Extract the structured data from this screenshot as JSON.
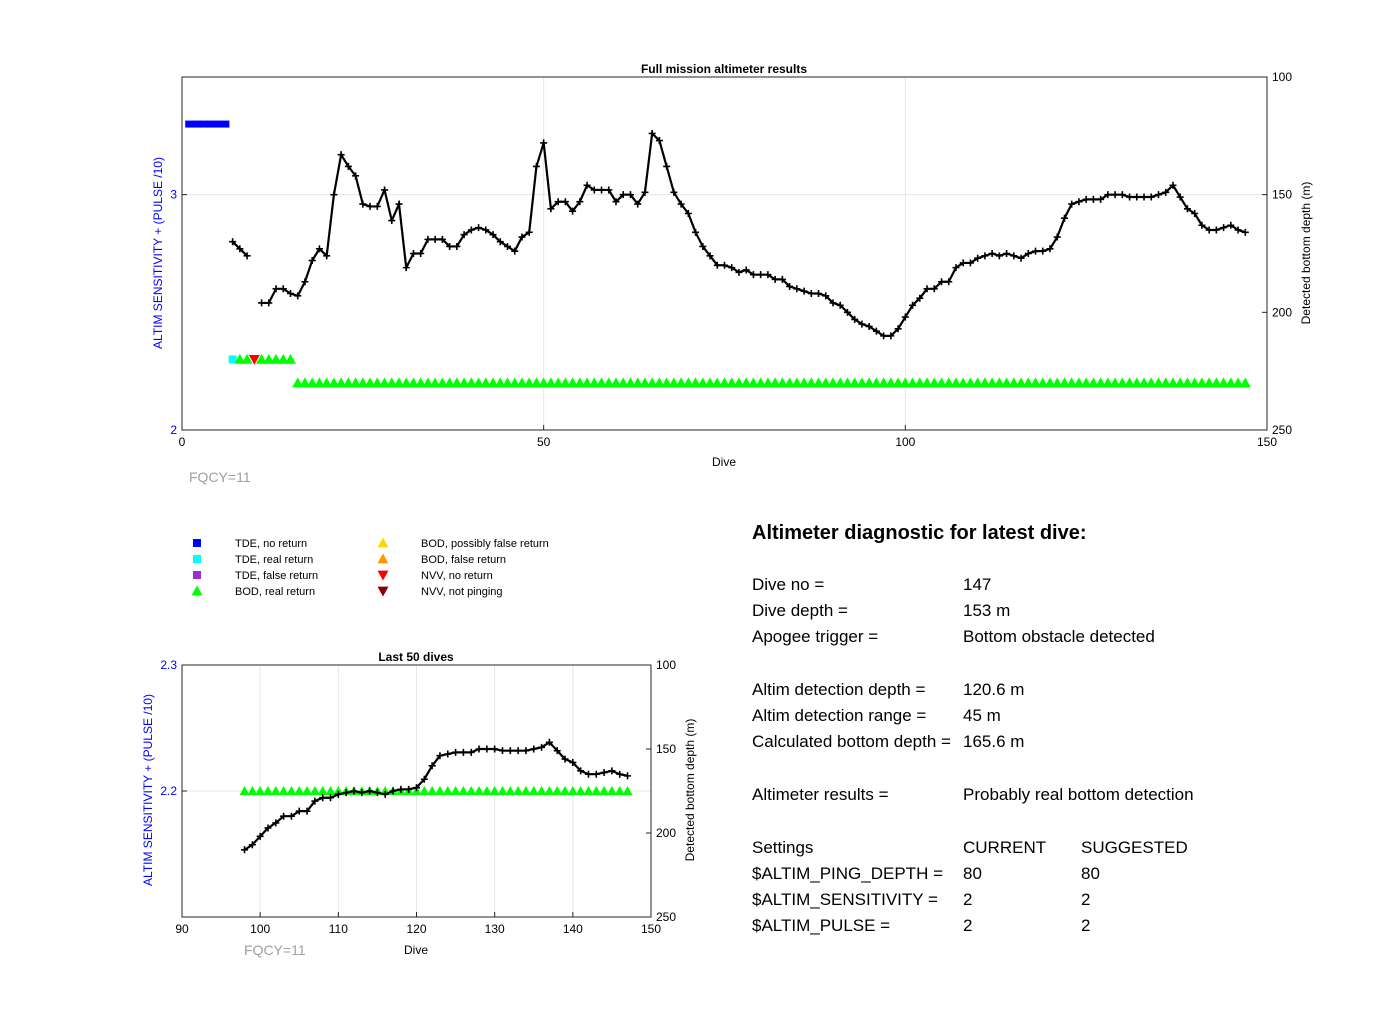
{
  "chart_data": [
    {
      "type": "line",
      "title": "Full mission altimeter results",
      "xlabel": "Dive",
      "ylabel": "ALTIM SENSITIVITY + (PULSE /10)",
      "y2label": "Detected bottom depth (m)",
      "xlim": [
        0,
        150
      ],
      "ylim": [
        2,
        3.5
      ],
      "y2lim": [
        100,
        250
      ],
      "y2_reversed": true,
      "xticks": [
        "0",
        "50",
        "100",
        "150"
      ],
      "yticks": [
        "2",
        "3"
      ],
      "y2ticks": [
        "100",
        "150",
        "200",
        "250"
      ],
      "grid": true,
      "annotation": "FQCY=11",
      "series": [
        {
          "name": "Detected bottom depth",
          "axis": "right",
          "color": "#000000",
          "points": [
            [
              7,
              170
            ],
            [
              8,
              173
            ],
            [
              9,
              176
            ],
            [
              11,
              196
            ],
            [
              12,
              196
            ],
            [
              13,
              190
            ],
            [
              14,
              190
            ],
            [
              15,
              192
            ],
            [
              16,
              193
            ],
            [
              17,
              187
            ],
            [
              18,
              178
            ],
            [
              19,
              173
            ],
            [
              20,
              176
            ],
            [
              21,
              150
            ],
            [
              22,
              133
            ],
            [
              23,
              138
            ],
            [
              24,
              142
            ],
            [
              25,
              154
            ],
            [
              26,
              155
            ],
            [
              27,
              155
            ],
            [
              28,
              148
            ],
            [
              29,
              161
            ],
            [
              30,
              154
            ],
            [
              31,
              181
            ],
            [
              32,
              175
            ],
            [
              33,
              175
            ],
            [
              34,
              169
            ],
            [
              35,
              169
            ],
            [
              36,
              169
            ],
            [
              37,
              172
            ],
            [
              38,
              172
            ],
            [
              39,
              167
            ],
            [
              40,
              165
            ],
            [
              41,
              164
            ],
            [
              42,
              165
            ],
            [
              43,
              167
            ],
            [
              44,
              170
            ],
            [
              45,
              172
            ],
            [
              46,
              174
            ],
            [
              47,
              168
            ],
            [
              48,
              166
            ],
            [
              49,
              138
            ],
            [
              50,
              128
            ],
            [
              51,
              156
            ],
            [
              52,
              153
            ],
            [
              53,
              153
            ],
            [
              54,
              157
            ],
            [
              55,
              153
            ],
            [
              56,
              146
            ],
            [
              57,
              148
            ],
            [
              58,
              148
            ],
            [
              59,
              148
            ],
            [
              60,
              153
            ],
            [
              61,
              150
            ],
            [
              62,
              150
            ],
            [
              63,
              154
            ],
            [
              64,
              149
            ],
            [
              65,
              124
            ],
            [
              66,
              127
            ],
            [
              67,
              138
            ],
            [
              68,
              149
            ],
            [
              69,
              154
            ],
            [
              70,
              158
            ],
            [
              71,
              166
            ],
            [
              72,
              172
            ],
            [
              73,
              176
            ],
            [
              74,
              180
            ],
            [
              75,
              180
            ],
            [
              76,
              181
            ],
            [
              77,
              183
            ],
            [
              78,
              182
            ],
            [
              79,
              184
            ],
            [
              80,
              184
            ],
            [
              81,
              184
            ],
            [
              82,
              186
            ],
            [
              83,
              186
            ],
            [
              84,
              189
            ],
            [
              85,
              190
            ],
            [
              86,
              191
            ],
            [
              87,
              192
            ],
            [
              88,
              192
            ],
            [
              89,
              193
            ],
            [
              90,
              196
            ],
            [
              91,
              197
            ],
            [
              92,
              200
            ],
            [
              93,
              203
            ],
            [
              94,
              205
            ],
            [
              95,
              206
            ],
            [
              96,
              208
            ],
            [
              97,
              210
            ],
            [
              98,
              210
            ],
            [
              99,
              207
            ],
            [
              100,
              202
            ],
            [
              101,
              197
            ],
            [
              102,
              194
            ],
            [
              103,
              190
            ],
            [
              104,
              190
            ],
            [
              105,
              187
            ],
            [
              106,
              187
            ],
            [
              107,
              181
            ],
            [
              108,
              179
            ],
            [
              109,
              179
            ],
            [
              110,
              177
            ],
            [
              111,
              176
            ],
            [
              112,
              175
            ],
            [
              113,
              176
            ],
            [
              114,
              175
            ],
            [
              115,
              176
            ],
            [
              116,
              177
            ],
            [
              117,
              175
            ],
            [
              118,
              174
            ],
            [
              119,
              174
            ],
            [
              120,
              173
            ],
            [
              121,
              168
            ],
            [
              122,
              160
            ],
            [
              123,
              154
            ],
            [
              124,
              153
            ],
            [
              125,
              152
            ],
            [
              126,
              152
            ],
            [
              127,
              152
            ],
            [
              128,
              150
            ],
            [
              129,
              150
            ],
            [
              130,
              150
            ],
            [
              131,
              151
            ],
            [
              132,
              151
            ],
            [
              133,
              151
            ],
            [
              134,
              151
            ],
            [
              135,
              150
            ],
            [
              136,
              149
            ],
            [
              137,
              146
            ],
            [
              138,
              151
            ],
            [
              139,
              156
            ],
            [
              140,
              158
            ],
            [
              141,
              163
            ],
            [
              142,
              165
            ],
            [
              143,
              165
            ],
            [
              144,
              164
            ],
            [
              145,
              163
            ],
            [
              146,
              165
            ],
            [
              147,
              166
            ]
          ]
        },
        {
          "name": "TDE, no return",
          "axis": "left",
          "color": "#0000ff",
          "marker": "square",
          "points": [
            [
              1,
              3.3
            ],
            [
              2,
              3.3
            ],
            [
              3,
              3.3
            ],
            [
              4,
              3.3
            ],
            [
              5,
              3.3
            ],
            [
              6,
              3.3
            ]
          ]
        },
        {
          "name": "TDE, real return",
          "axis": "left",
          "color": "#00ffff",
          "marker": "square",
          "points": [
            [
              7,
              2.3
            ]
          ]
        },
        {
          "name": "NVV, no return",
          "axis": "left",
          "color": "#ff0000",
          "marker": "triangle-down",
          "points": [
            [
              10,
              2.3
            ]
          ]
        },
        {
          "name": "BOD, real return",
          "axis": "left",
          "color": "#00ff00",
          "marker": "triangle-up",
          "points_level_2_3": [
            8,
            9,
            11,
            12,
            13,
            14,
            15
          ],
          "points_level_2_2_range": [
            16,
            147
          ]
        }
      ]
    },
    {
      "type": "line",
      "title": "Last 50 dives",
      "xlabel": "Dive",
      "ylabel": "ALTIM SENSITIVITY + (PULSE /10)",
      "y2label": "Detected bottom depth (m)",
      "xlim": [
        90,
        150
      ],
      "ylim": [
        2.1,
        2.3
      ],
      "y2lim": [
        100,
        250
      ],
      "y2_reversed": true,
      "xticks": [
        "90",
        "100",
        "110",
        "120",
        "130",
        "140",
        "150"
      ],
      "yticks": [
        "2.2",
        "2.3"
      ],
      "y2ticks": [
        "100",
        "150",
        "200",
        "250"
      ],
      "grid": true,
      "annotation": "FQCY=11",
      "series": [
        {
          "name": "Detected bottom depth",
          "axis": "right",
          "color": "#000000",
          "from_dive": 98
        },
        {
          "name": "BOD, real return",
          "axis": "left",
          "color": "#00ff00",
          "marker": "triangle-up",
          "range": [
            98,
            147
          ],
          "value": 2.2
        }
      ]
    }
  ],
  "legend": {
    "left": [
      {
        "label": "TDE, no return",
        "color": "#0000ff",
        "marker": "square"
      },
      {
        "label": "TDE, real return",
        "color": "#00ffff",
        "marker": "square"
      },
      {
        "label": "TDE, false return",
        "color": "#9932cc",
        "marker": "square"
      },
      {
        "label": "BOD, real return",
        "color": "#00ff00",
        "marker": "triangle-up"
      }
    ],
    "right": [
      {
        "label": "BOD, possibly false return",
        "color": "#ffd700",
        "marker": "triangle-up"
      },
      {
        "label": "BOD, false return",
        "color": "#ff9900",
        "marker": "triangle-up"
      },
      {
        "label": "NVV, no return",
        "color": "#ff0000",
        "marker": "triangle-down"
      },
      {
        "label": "NVV, not pinging",
        "color": "#8b0000",
        "marker": "triangle-down"
      }
    ]
  },
  "diagnostic": {
    "title": "Altimeter diagnostic for latest dive:",
    "dive_no_label": "Dive no =",
    "dive_no": "147",
    "dive_depth_label": "Dive depth =",
    "dive_depth": "153 m",
    "apogee_label": "Apogee trigger =",
    "apogee": "Bottom obstacle detected",
    "altim_depth_label": "Altim detection depth =",
    "altim_depth": "120.6 m",
    "altim_range_label": "Altim detection range =",
    "altim_range": "45 m",
    "calc_depth_label": "Calculated bottom depth =",
    "calc_depth": "165.6 m",
    "results_label": "Altimeter results =",
    "results": "Probably real bottom detection",
    "settings_label": "Settings",
    "current_label": "CURRENT",
    "suggested_label": "SUGGESTED",
    "ping_label": "$ALTIM_PING_DEPTH =",
    "ping_current": "80",
    "ping_suggested": "80",
    "sens_label": "$ALTIM_SENSITIVITY =",
    "sens_current": "2",
    "sens_suggested": "2",
    "pulse_label": "$ALTIM_PULSE =",
    "pulse_current": "2",
    "pulse_suggested": "2"
  }
}
